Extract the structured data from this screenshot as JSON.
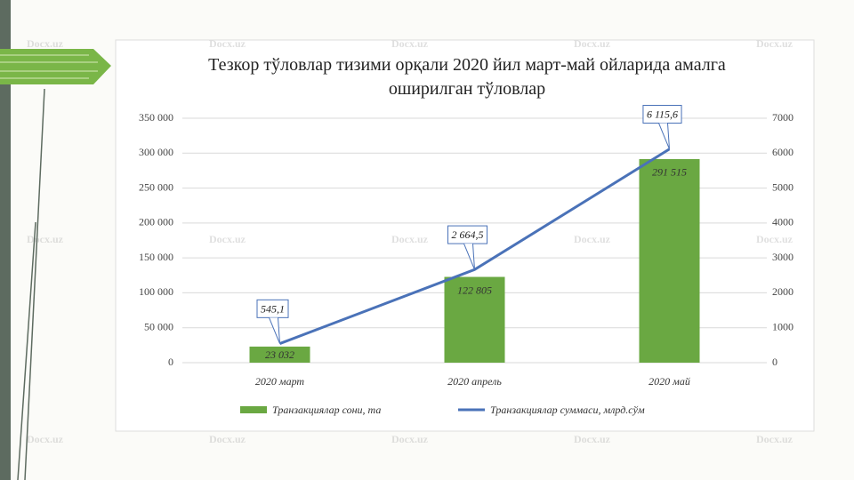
{
  "watermark": "Docx.uz",
  "chart_data": {
    "type": "bar-line",
    "title": "Тезкор тўловлар тизими орқали 2020 йил март-май ойларида амалга оширилган тўловлар",
    "categories": [
      "2020 март",
      "2020 апрель",
      "2020 май"
    ],
    "series": [
      {
        "name": "Транзакциялар сони, та",
        "type": "bar",
        "color": "#6aa842",
        "values": [
          23032,
          122805,
          291515
        ],
        "value_labels": [
          "23 032",
          "122 805",
          "291 515"
        ]
      },
      {
        "name": "Транзакциялар суммаси, млрд.сўм",
        "type": "line",
        "axis": "y2",
        "color": "#4a72b8",
        "values": [
          545.1,
          2664.5,
          6115.6
        ],
        "value_labels": [
          "545,1",
          "2 664,5",
          "6 115,6"
        ]
      }
    ],
    "ylim": [
      0,
      350000
    ],
    "yticks": [
      0,
      {
        "value": 50000,
        "label": "50 000"
      },
      {
        "value": 100000,
        "label": "100 000"
      },
      {
        "value": 150000,
        "label": "150 000"
      },
      {
        "value": 200000,
        "label": "200 000"
      },
      {
        "value": 250000,
        "label": "250 000"
      },
      {
        "value": 300000,
        "label": "300 000"
      },
      {
        "value": 350000,
        "label": "350 000"
      }
    ],
    "y2lim": [
      0,
      7000
    ],
    "y2ticks": [
      0,
      1000,
      2000,
      3000,
      4000,
      5000,
      6000,
      7000
    ],
    "grid": true,
    "legend": "bottom"
  }
}
